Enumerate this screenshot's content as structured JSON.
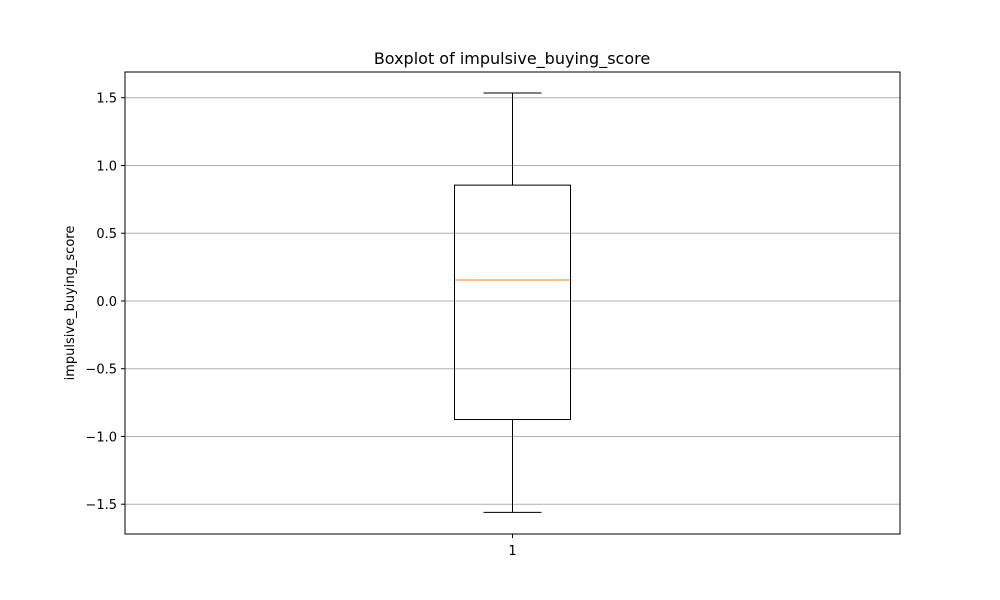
{
  "chart_data": {
    "type": "boxplot",
    "title": "Boxplot of impulsive_buying_score",
    "xlabel": "",
    "ylabel": "impulsive_buying_score",
    "ylim": [
      -1.72,
      1.69
    ],
    "yticks": [
      -1.5,
      -1.0,
      -0.5,
      0.0,
      0.5,
      1.0,
      1.5
    ],
    "ytick_labels": [
      "−1.5",
      "−1.0",
      "−0.5",
      "0.0",
      "0.5",
      "1.0",
      "1.5"
    ],
    "categories": [
      "1"
    ],
    "boxes": [
      {
        "category": "1",
        "whisker_low": -1.56,
        "q1": -0.875,
        "median": 0.155,
        "q3": 0.855,
        "whisker_high": 1.535
      }
    ],
    "grid": {
      "y": true,
      "x": false
    },
    "colors": {
      "box": "#000000",
      "median": "#ff7f0e",
      "grid": "#b0b0b0"
    }
  }
}
